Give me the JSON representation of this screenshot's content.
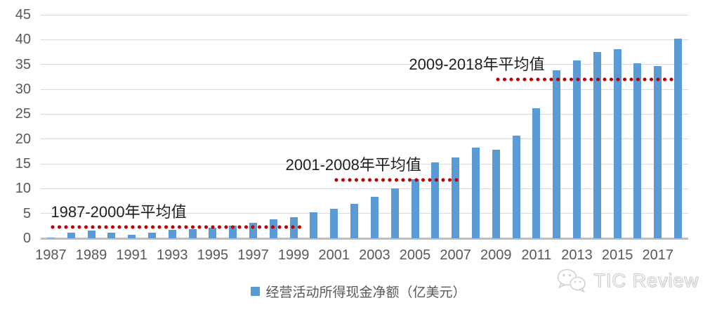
{
  "chart_data": {
    "type": "bar",
    "title": "",
    "legend": "经营活动所得现金净额（亿美元）",
    "categories": [
      1987,
      1988,
      1989,
      1990,
      1991,
      1992,
      1993,
      1994,
      1995,
      1996,
      1997,
      1998,
      1999,
      2000,
      2001,
      2002,
      2003,
      2004,
      2005,
      2006,
      2007,
      2008,
      2009,
      2010,
      2011,
      2012,
      2013,
      2014,
      2015,
      2016,
      2017,
      2018
    ],
    "values": [
      0.2,
      1.2,
      1.5,
      1.1,
      0.7,
      1.1,
      1.7,
      1.8,
      2.1,
      2.5,
      3.1,
      3.8,
      4.3,
      5.2,
      6.0,
      7.0,
      8.4,
      10.1,
      11.9,
      15.3,
      16.3,
      18.3,
      17.8,
      20.6,
      26.2,
      33.8,
      35.8,
      37.5,
      38.0,
      35.2,
      34.7,
      40.2
    ],
    "ylim": [
      0,
      45
    ],
    "ytick_step": 5,
    "ytick_labels": [
      "0",
      "5",
      "10",
      "15",
      "20",
      "25",
      "30",
      "35",
      "40",
      "45"
    ],
    "xtick_labels": [
      "1987",
      "1989",
      "1991",
      "1993",
      "1995",
      "1997",
      "1999",
      "2001",
      "2003",
      "2005",
      "2007",
      "2009",
      "2011",
      "2013",
      "2015",
      "2017"
    ],
    "xtick_every": 2,
    "grid": true,
    "legend_position": "bottom",
    "annotations": [
      {
        "label": "1987-2000年平均值",
        "value": 2.2,
        "start_year": 1987,
        "end_year": 1999.4,
        "label_year": 1987.0
      },
      {
        "label": "2001-2008年平均值",
        "value": 11.7,
        "start_year": 2001,
        "end_year": 2007.3,
        "label_year": 1998.6
      },
      {
        "label": "2009-2018年平均值",
        "value": 32.0,
        "start_year": 2009,
        "end_year": 2017.9,
        "label_year": 2004.7
      }
    ],
    "colors": {
      "bar": "#5B9BD5",
      "avg_line": "#C00000",
      "axis_text": "#595959",
      "gridline": "#D9D9D9",
      "axis_line": "#BFBFBF",
      "annotation_text": "#1f1f1f"
    }
  },
  "watermark": {
    "text": "TIC Review",
    "icon": "wechat-icon"
  }
}
